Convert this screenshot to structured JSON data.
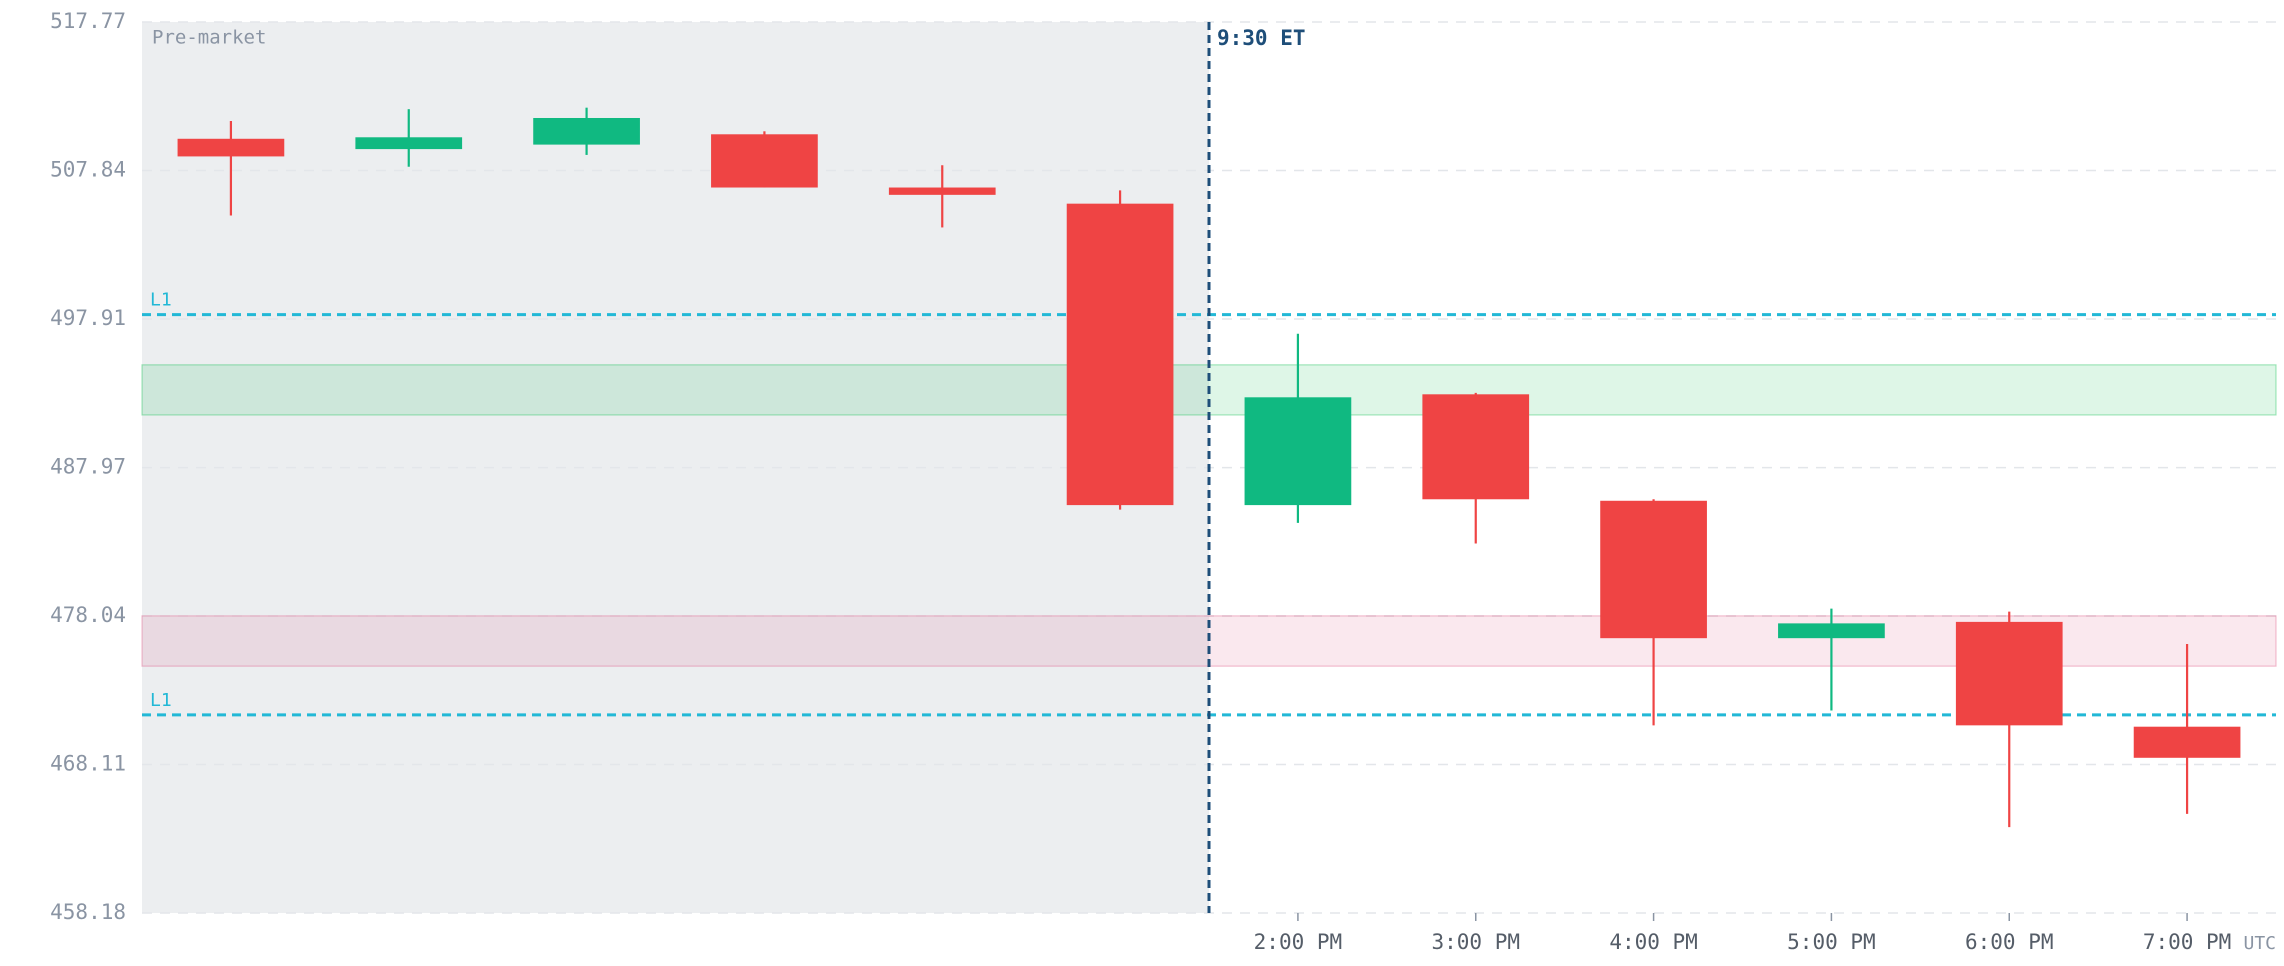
{
  "chart_data": {
    "type": "candlestick",
    "categories": [
      null,
      null,
      null,
      null,
      null,
      null,
      "2:00 PM",
      "3:00 PM",
      "4:00 PM",
      "5:00 PM",
      "6:00 PM",
      "7:00 PM"
    ],
    "open": [
      509.96,
      509.27,
      509.57,
      510.26,
      506.7,
      505.62,
      485.46,
      492.87,
      485.75,
      476.56,
      477.65,
      470.64
    ],
    "high": [
      511.15,
      511.94,
      512.04,
      510.46,
      508.19,
      506.51,
      496.92,
      492.97,
      485.85,
      478.54,
      478.34,
      476.17
    ],
    "low": [
      504.83,
      508.09,
      508.88,
      506.7,
      504.03,
      485.16,
      484.27,
      482.89,
      470.73,
      471.72,
      463.92,
      464.81
    ],
    "close": [
      508.78,
      510.06,
      511.35,
      506.7,
      506.21,
      485.46,
      492.67,
      485.85,
      476.56,
      477.55,
      470.73,
      468.56
    ],
    "up_color": "#10b981",
    "down_color": "#ef4444",
    "ylim": [
      458.18,
      517.77
    ],
    "yticks": [
      458.18,
      468.11,
      478.04,
      487.97,
      497.91,
      507.84,
      517.77
    ],
    "grid": true,
    "x_unit": "UTC",
    "premarket": {
      "label": "Pre-market",
      "count": 6
    },
    "session_open": {
      "label": "9:30 ET",
      "color": "#1e4e79"
    },
    "levels": [
      {
        "label": "L1",
        "value": 498.2,
        "color": "#22b8d6"
      },
      {
        "label": "L1",
        "value": 471.43,
        "color": "#22b8d6"
      }
    ],
    "zones": [
      {
        "from": 491.49,
        "to": 494.84,
        "color": "#22c55e"
      },
      {
        "from": 474.69,
        "to": 478.05,
        "color": "#e0648e"
      }
    ]
  }
}
